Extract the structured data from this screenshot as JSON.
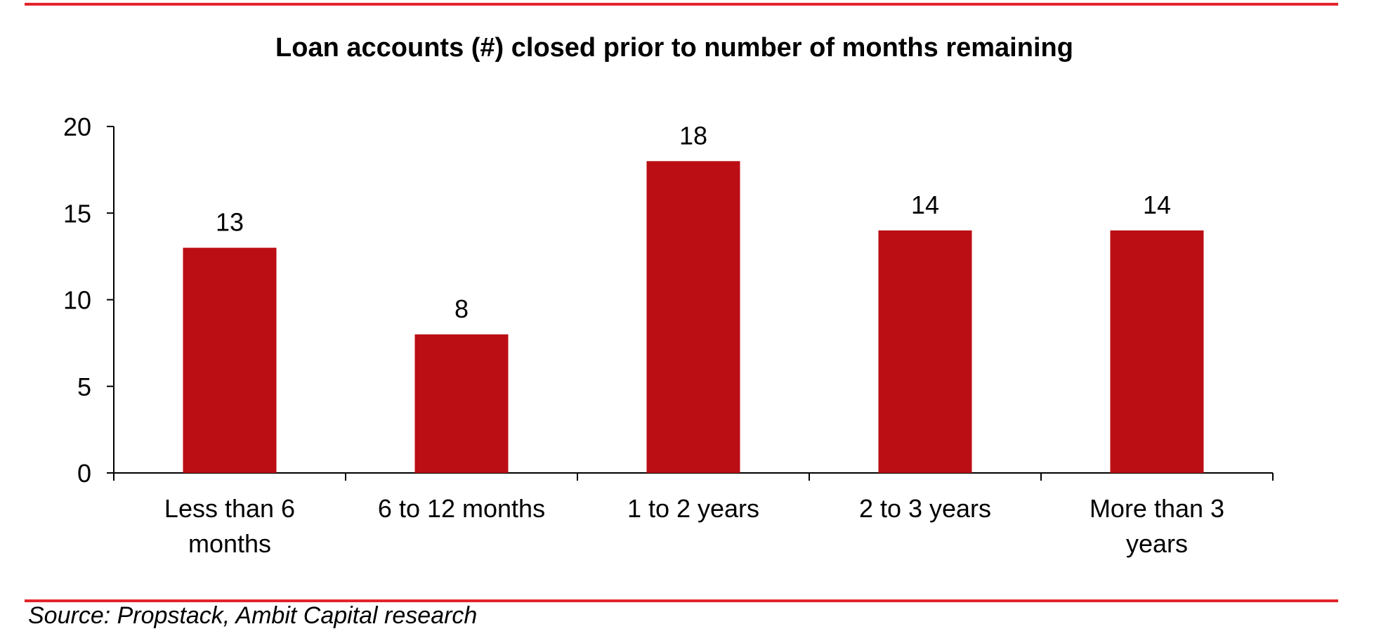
{
  "chart_data": {
    "type": "bar",
    "title": "Loan accounts (#) closed  prior to number of months remaining",
    "categories": [
      [
        "Less than 6",
        "months"
      ],
      [
        "6 to 12 months"
      ],
      [
        "1 to 2 years"
      ],
      [
        "2 to 3 years"
      ],
      [
        "More than 3",
        "years"
      ]
    ],
    "values": [
      13,
      8,
      18,
      14,
      14
    ],
    "data_labels": [
      "13",
      "8",
      "18",
      "14",
      "14"
    ],
    "xlabel": "",
    "ylabel": "",
    "ylim": [
      0,
      20
    ],
    "yticks": [
      0,
      5,
      10,
      15,
      20
    ],
    "ytick_labels": [
      "0",
      "5",
      "10",
      "15",
      "20"
    ],
    "grid": false,
    "legend": "none"
  },
  "source": "Source: Propstack, Ambit Capital research",
  "colors": {
    "bar": "#bb0e14",
    "rule": "#e4242b",
    "axis": "#000000"
  }
}
